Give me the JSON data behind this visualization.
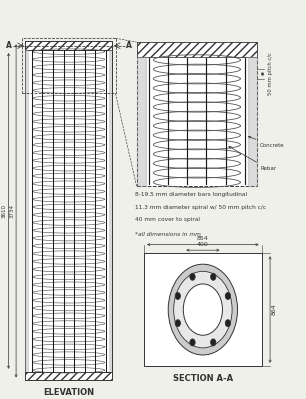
{
  "bg_color": "#f0f0eb",
  "title_elevation": "ELEVATION",
  "title_section": "SECTION A-A",
  "dim_total": "3610",
  "dim_inner": "3734",
  "dim_854": "854",
  "dim_400": "400",
  "dim_864": "864",
  "label_A_left": "A",
  "label_A_right": "A",
  "spiral_pitch_label": "50 mm pitch c/c",
  "note1": "8-19.5 mm diameter bars longitudinal",
  "note2": "11.3 mm diameter spiral w/ 50 mm pitch c/c",
  "note3": "40 mm cover to spiral",
  "note4": "*all dimensions in mm",
  "label_concrete": "Concrete",
  "label_rebar": "Rebar",
  "line_color": "#333333"
}
